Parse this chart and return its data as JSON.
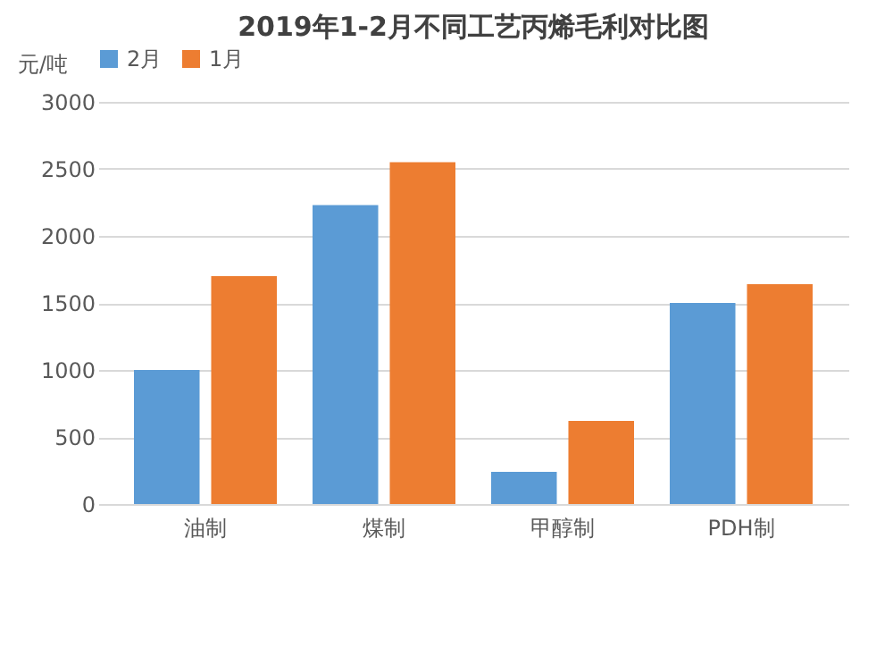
{
  "chart_data": {
    "type": "bar",
    "title": "2019年1-2月不同工艺丙烯毛利对比图",
    "ylabel": "元/吨",
    "categories": [
      "油制",
      "煤制",
      "甲醇制",
      "PDH制"
    ],
    "series": [
      {
        "name": "2月",
        "color": "#5b9bd5",
        "values": [
          1000,
          2230,
          240,
          1500
        ]
      },
      {
        "name": "1月",
        "color": "#ed7d31",
        "values": [
          1700,
          2550,
          620,
          1640
        ]
      }
    ],
    "ylim": [
      0,
      3000
    ],
    "yticks": [
      0,
      500,
      1000,
      1500,
      2000,
      2500,
      3000
    ],
    "grid": "y",
    "legend": "top"
  }
}
